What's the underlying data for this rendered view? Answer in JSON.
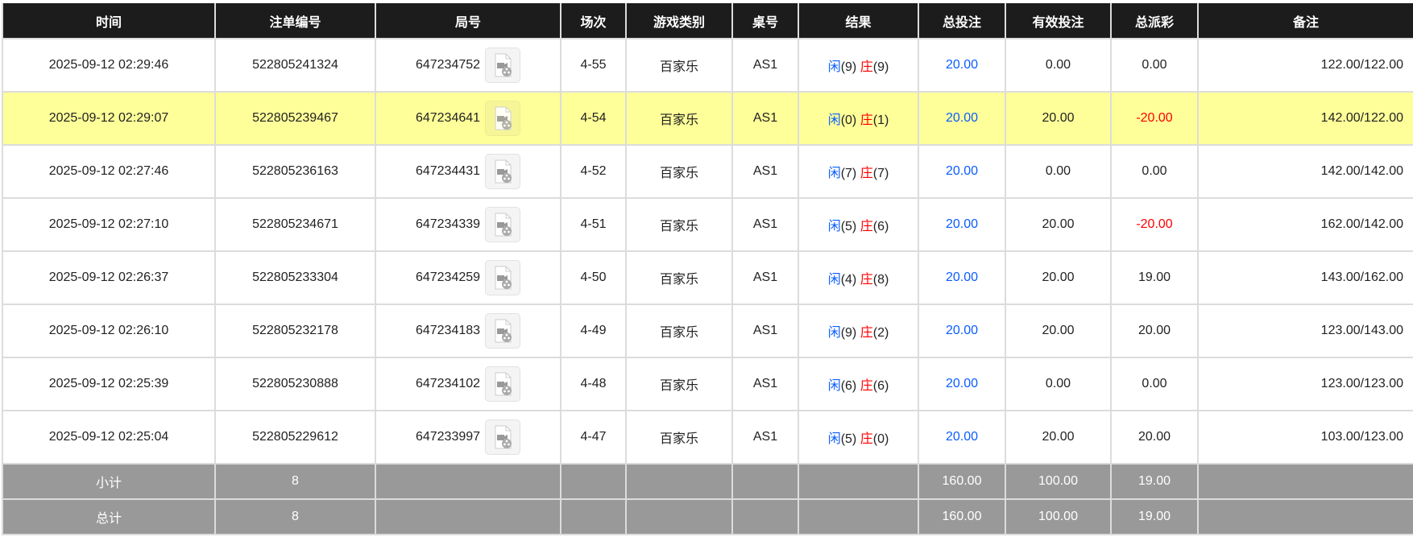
{
  "columns": [
    "时间",
    "注单编号",
    "局号",
    "场次",
    "游戏类别",
    "桌号",
    "结果",
    "总投注",
    "有效投注",
    "总派彩",
    "备注"
  ],
  "result_labels": {
    "player": "闲",
    "banker": "庄"
  },
  "colors": {
    "header_bg": "#1c1c1c",
    "highlight_row": "#ffff99",
    "bet_blue": "#0a5cff",
    "negative_red": "#ff0000",
    "summary_bg": "#999999"
  },
  "rows": [
    {
      "time": "2025-09-12 02:29:46",
      "bet_id": "522805241324",
      "round_id": "647234752",
      "shoe": "4-55",
      "game": "百家乐",
      "table": "AS1",
      "player": "(9)",
      "banker": "(9)",
      "total_bet": "20.00",
      "valid_bet": "0.00",
      "payout": "0.00",
      "payout_negative": false,
      "note": "122.00/122.00",
      "highlighted": false
    },
    {
      "time": "2025-09-12 02:29:07",
      "bet_id": "522805239467",
      "round_id": "647234641",
      "shoe": "4-54",
      "game": "百家乐",
      "table": "AS1",
      "player": "(0)",
      "banker": "(1)",
      "total_bet": "20.00",
      "valid_bet": "20.00",
      "payout": "-20.00",
      "payout_negative": true,
      "note": "142.00/122.00",
      "highlighted": true
    },
    {
      "time": "2025-09-12 02:27:46",
      "bet_id": "522805236163",
      "round_id": "647234431",
      "shoe": "4-52",
      "game": "百家乐",
      "table": "AS1",
      "player": "(7)",
      "banker": "(7)",
      "total_bet": "20.00",
      "valid_bet": "0.00",
      "payout": "0.00",
      "payout_negative": false,
      "note": "142.00/142.00",
      "highlighted": false
    },
    {
      "time": "2025-09-12 02:27:10",
      "bet_id": "522805234671",
      "round_id": "647234339",
      "shoe": "4-51",
      "game": "百家乐",
      "table": "AS1",
      "player": "(5)",
      "banker": "(6)",
      "total_bet": "20.00",
      "valid_bet": "20.00",
      "payout": "-20.00",
      "payout_negative": true,
      "note": "162.00/142.00",
      "highlighted": false
    },
    {
      "time": "2025-09-12 02:26:37",
      "bet_id": "522805233304",
      "round_id": "647234259",
      "shoe": "4-50",
      "game": "百家乐",
      "table": "AS1",
      "player": "(4)",
      "banker": "(8)",
      "total_bet": "20.00",
      "valid_bet": "20.00",
      "payout": "19.00",
      "payout_negative": false,
      "note": "143.00/162.00",
      "highlighted": false
    },
    {
      "time": "2025-09-12 02:26:10",
      "bet_id": "522805232178",
      "round_id": "647234183",
      "shoe": "4-49",
      "game": "百家乐",
      "table": "AS1",
      "player": "(9)",
      "banker": "(2)",
      "total_bet": "20.00",
      "valid_bet": "20.00",
      "payout": "20.00",
      "payout_negative": false,
      "note": "123.00/143.00",
      "highlighted": false
    },
    {
      "time": "2025-09-12 02:25:39",
      "bet_id": "522805230888",
      "round_id": "647234102",
      "shoe": "4-48",
      "game": "百家乐",
      "table": "AS1",
      "player": "(6)",
      "banker": "(6)",
      "total_bet": "20.00",
      "valid_bet": "0.00",
      "payout": "0.00",
      "payout_negative": false,
      "note": "123.00/123.00",
      "highlighted": false
    },
    {
      "time": "2025-09-12 02:25:04",
      "bet_id": "522805229612",
      "round_id": "647233997",
      "shoe": "4-47",
      "game": "百家乐",
      "table": "AS1",
      "player": "(5)",
      "banker": "(0)",
      "total_bet": "20.00",
      "valid_bet": "20.00",
      "payout": "20.00",
      "payout_negative": false,
      "note": "103.00/123.00",
      "highlighted": false
    }
  ],
  "subtotal": {
    "label": "小计",
    "count": "8",
    "total_bet": "160.00",
    "valid_bet": "100.00",
    "payout": "19.00"
  },
  "grand_total": {
    "label": "总计",
    "count": "8",
    "total_bet": "160.00",
    "valid_bet": "100.00",
    "payout": "19.00"
  }
}
